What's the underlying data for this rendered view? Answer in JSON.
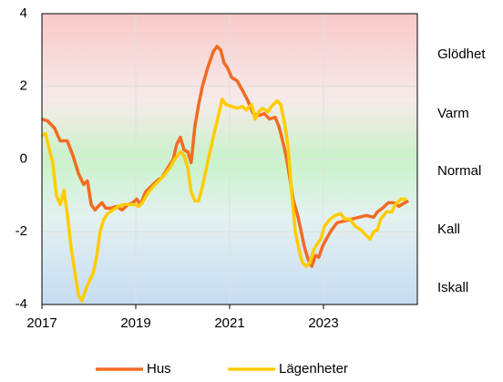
{
  "chart_data": {
    "type": "line",
    "xlim": [
      2017,
      2025
    ],
    "xticks": [
      2017,
      2019,
      2021,
      2023
    ],
    "ylim": [
      -4,
      4
    ],
    "yticks": [
      -4,
      -2,
      0,
      2,
      4
    ],
    "grid": true,
    "zone_labels": [
      "Glödhet",
      "Varm",
      "Normal",
      "Kall",
      "Iskall"
    ],
    "series": [
      {
        "name": "Hus",
        "color": "#F26B21",
        "x": [
          2017,
          2017.12,
          2017.27,
          2017.39,
          2017.54,
          2017.66,
          2017.78,
          2017.89,
          2017.97,
          2018.05,
          2018.13,
          2018.2,
          2018.28,
          2018.36,
          2018.48,
          2018.59,
          2018.71,
          2018.83,
          2018.94,
          2019.02,
          2019.1,
          2019.21,
          2019.33,
          2019.45,
          2019.56,
          2019.68,
          2019.8,
          2019.87,
          2019.95,
          2020.03,
          2020.11,
          2020.18,
          2020.26,
          2020.34,
          2020.42,
          2020.53,
          2020.65,
          2020.73,
          2020.81,
          2020.88,
          2020.96,
          2021.04,
          2021.16,
          2021.27,
          2021.39,
          2021.5,
          2021.62,
          2021.74,
          2021.85,
          2021.97,
          2022.05,
          2022.13,
          2022.2,
          2022.28,
          2022.36,
          2022.44,
          2022.51,
          2022.59,
          2022.67,
          2022.75,
          2022.83,
          2022.9,
          2022.98,
          2023.06,
          2023.17,
          2023.29,
          2023.45,
          2023.6,
          2023.76,
          2023.91,
          2024.07,
          2024.15,
          2024.26,
          2024.38,
          2024.5,
          2024.61,
          2024.73,
          2024.81
        ],
        "values": [
          1.1,
          1.05,
          0.85,
          0.5,
          0.5,
          0.1,
          -0.4,
          -0.7,
          -0.6,
          -1.25,
          -1.4,
          -1.3,
          -1.2,
          -1.35,
          -1.35,
          -1.3,
          -1.4,
          -1.25,
          -1.2,
          -1.1,
          -1.25,
          -0.9,
          -0.75,
          -0.6,
          -0.5,
          -0.25,
          0,
          0.4,
          0.6,
          0.25,
          0.2,
          -0.1,
          0.9,
          1.5,
          2.0,
          2.5,
          2.95,
          3.1,
          3.0,
          2.65,
          2.5,
          2.25,
          2.15,
          1.9,
          1.6,
          1.25,
          1.2,
          1.25,
          1.1,
          1.15,
          0.9,
          0.5,
          0.1,
          -0.5,
          -1.15,
          -1.5,
          -1.9,
          -2.4,
          -2.75,
          -2.95,
          -2.65,
          -2.7,
          -2.4,
          -2.2,
          -1.95,
          -1.75,
          -1.7,
          -1.65,
          -1.6,
          -1.55,
          -1.6,
          -1.45,
          -1.35,
          -1.2,
          -1.2,
          -1.3,
          -1.2,
          -1.15
        ]
      },
      {
        "name": "Lägenheter",
        "color": "#FFCC00",
        "x": [
          2017,
          2017.08,
          2017.16,
          2017.23,
          2017.31,
          2017.39,
          2017.47,
          2017.54,
          2017.62,
          2017.7,
          2017.78,
          2017.85,
          2017.93,
          2018.01,
          2018.09,
          2018.17,
          2018.24,
          2018.32,
          2018.4,
          2018.51,
          2018.63,
          2018.75,
          2018.86,
          2018.98,
          2019.06,
          2019.14,
          2019.25,
          2019.37,
          2019.49,
          2019.6,
          2019.72,
          2019.83,
          2019.95,
          2020.03,
          2020.11,
          2020.18,
          2020.26,
          2020.34,
          2020.42,
          2020.53,
          2020.65,
          2020.77,
          2020.84,
          2020.92,
          2021.04,
          2021.16,
          2021.27,
          2021.35,
          2021.47,
          2021.54,
          2021.62,
          2021.7,
          2021.82,
          2021.89,
          2022.01,
          2022.09,
          2022.17,
          2022.24,
          2022.32,
          2022.4,
          2022.48,
          2022.55,
          2022.63,
          2022.71,
          2022.79,
          2022.86,
          2022.94,
          2023.02,
          2023.14,
          2023.25,
          2023.37,
          2023.45,
          2023.56,
          2023.68,
          2023.8,
          2023.91,
          2023.99,
          2024.07,
          2024.15,
          2024.22,
          2024.34,
          2024.46,
          2024.53,
          2024.65,
          2024.77
        ],
        "values": [
          0.65,
          0.7,
          0.25,
          -0.1,
          -1.0,
          -1.25,
          -0.85,
          -1.5,
          -2.4,
          -3.1,
          -3.75,
          -3.9,
          -3.6,
          -3.35,
          -3.15,
          -2.65,
          -2.0,
          -1.65,
          -1.5,
          -1.4,
          -1.3,
          -1.25,
          -1.25,
          -1.25,
          -1.3,
          -1.2,
          -0.95,
          -0.75,
          -0.6,
          -0.45,
          -0.25,
          0,
          0.2,
          0.1,
          -0.25,
          -0.9,
          -1.15,
          -1.15,
          -0.75,
          -0.1,
          0.6,
          1.25,
          1.65,
          1.5,
          1.45,
          1.4,
          1.45,
          1.35,
          1.5,
          1.1,
          1.3,
          1.4,
          1.3,
          1.45,
          1.6,
          1.5,
          1.0,
          0.4,
          -0.9,
          -2.0,
          -2.5,
          -2.85,
          -2.95,
          -2.85,
          -2.5,
          -2.35,
          -2.2,
          -1.85,
          -1.65,
          -1.55,
          -1.5,
          -1.65,
          -1.65,
          -1.85,
          -1.95,
          -2.1,
          -2.2,
          -2.0,
          -1.95,
          -1.65,
          -1.45,
          -1.45,
          -1.25,
          -1.1,
          -1.1
        ]
      }
    ]
  }
}
